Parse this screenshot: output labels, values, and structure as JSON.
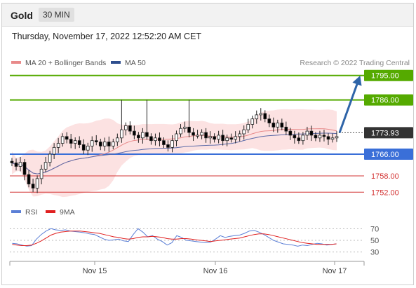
{
  "header": {
    "symbol": "Gold",
    "timeframe": "30 MIN"
  },
  "timestamp": "Thursday, November 17, 2022 12:52:20 AM CET",
  "legend": {
    "ma_bb_label": "MA 20 + Bollinger Bands",
    "ma50_label": "MA 50",
    "research_credit": "Research © 2022 Trading Central",
    "rsi_label": "RSI",
    "rsi_ma_label": "9MA"
  },
  "colors": {
    "resistance": "#55aa00",
    "support": "#3a6fd8",
    "current": "#333333",
    "pivot_red": "#d33333",
    "bullish": "#ffffff",
    "bearish": "#000000",
    "bb_fill": "#fbd6d6",
    "ma20": "#e88a8a",
    "ma50": "#5b6aa8",
    "arrow": "#2e64a8",
    "rsi": "#5b7fd6",
    "rsi_ma": "#e02020"
  },
  "chart_data": [
    {
      "type": "candlestick",
      "title": "Gold",
      "levels": [
        {
          "label": "1795.00",
          "kind": "resistance"
        },
        {
          "label": "1786.00",
          "kind": "resistance"
        },
        {
          "label": "1773.93",
          "kind": "current"
        },
        {
          "label": "1766.00",
          "kind": "support"
        },
        {
          "label": "1758.00",
          "kind": "red"
        },
        {
          "label": "1752.00",
          "kind": "red"
        }
      ],
      "ylim": [
        1750,
        1797
      ],
      "x_ticks": [
        "Nov 15",
        "Nov 16",
        "Nov 17"
      ],
      "close_path": [
        1762.8,
        1761.5,
        1763.0,
        1758.5,
        1755.0,
        1753.5,
        1757.0,
        1760.5,
        1763.0,
        1766.0,
        1768.5,
        1770.0,
        1772.5,
        1771.5,
        1770.0,
        1771.0,
        1769.5,
        1767.5,
        1769.0,
        1771.0,
        1770.5,
        1769.0,
        1770.5,
        1769.0,
        1770.5,
        1772.0,
        1775.0,
        1776.5,
        1774.5,
        1773.0,
        1772.0,
        1774.0,
        1772.5,
        1771.0,
        1772.0,
        1771.0,
        1769.5,
        1768.5,
        1771.0,
        1773.5,
        1775.5,
        1776.0,
        1774.0,
        1773.0,
        1773.0,
        1774.0,
        1772.0,
        1772.5,
        1771.5,
        1773.0,
        1771.0,
        1772.0,
        1771.5,
        1772.5,
        1773.5,
        1775.0,
        1777.0,
        1779.0,
        1780.5,
        1781.0,
        1779.0,
        1777.5,
        1776.0,
        1777.5,
        1776.0,
        1774.5,
        1773.0,
        1772.0,
        1771.0,
        1773.0,
        1774.5,
        1773.0,
        1772.0,
        1773.0,
        1772.5,
        1771.5,
        1772.0,
        1772.5
      ],
      "wick_spike": [
        {
          "i": 26,
          "high": 1786.0
        },
        {
          "i": 32,
          "high": 1786.0
        },
        {
          "i": 42,
          "high": 1786.0
        }
      ],
      "projection": {
        "from": 1773.93,
        "to": 1795.0
      }
    },
    {
      "type": "line",
      "title": "RSI",
      "levels": [
        70,
        50,
        30
      ],
      "series": [
        {
          "name": "RSI",
          "values": [
            45,
            44,
            42,
            40,
            41,
            52,
            60,
            66,
            70,
            68,
            67,
            68,
            66,
            65,
            64,
            63,
            61,
            60,
            56,
            52,
            50,
            51,
            52,
            49,
            48,
            60,
            70,
            64,
            56,
            58,
            52,
            48,
            42,
            46,
            58,
            55,
            50,
            49,
            48,
            47,
            46,
            47,
            52,
            58,
            55,
            57,
            58,
            59,
            62,
            66,
            67,
            64,
            60,
            55,
            50,
            47,
            44,
            43,
            42,
            40,
            42,
            41,
            43,
            45,
            44,
            42,
            43,
            44
          ]
        },
        {
          "name": "9MA",
          "values": [
            43,
            42,
            41,
            41,
            42,
            45,
            49,
            54,
            59,
            62,
            64,
            65,
            66,
            66,
            66,
            65,
            64,
            63,
            62,
            60,
            58,
            56,
            55,
            53,
            52,
            53,
            55,
            56,
            56,
            57,
            56,
            55,
            53,
            52,
            52,
            53,
            53,
            52,
            51,
            50,
            49,
            48,
            49,
            50,
            51,
            52,
            53,
            54,
            56,
            58,
            60,
            61,
            61,
            60,
            58,
            56,
            54,
            52,
            50,
            48,
            46,
            45,
            44,
            43,
            43,
            43,
            43,
            44
          ]
        }
      ]
    }
  ]
}
